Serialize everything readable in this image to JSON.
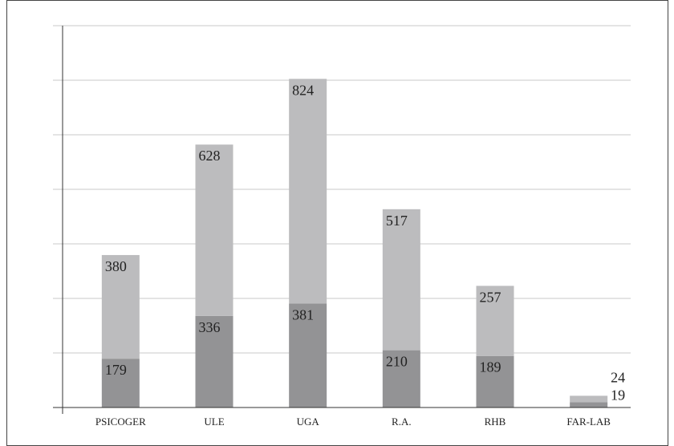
{
  "chart_data": {
    "type": "stacked_bar",
    "categories": [
      "PSICOGER",
      "ULE",
      "UGA",
      "R.A.",
      "RHB",
      "FAR-LAB"
    ],
    "series": [
      {
        "color": "#939395",
        "values": [
          179,
          336,
          381,
          210,
          189,
          19
        ]
      },
      {
        "color": "#bcbcbe",
        "values": [
          380,
          628,
          824,
          517,
          257,
          24
        ]
      }
    ],
    "ylim": [
      0,
      1400
    ],
    "yticks": [
      0,
      200,
      400,
      600,
      800,
      1000,
      1200,
      1400
    ],
    "grid": true
  }
}
